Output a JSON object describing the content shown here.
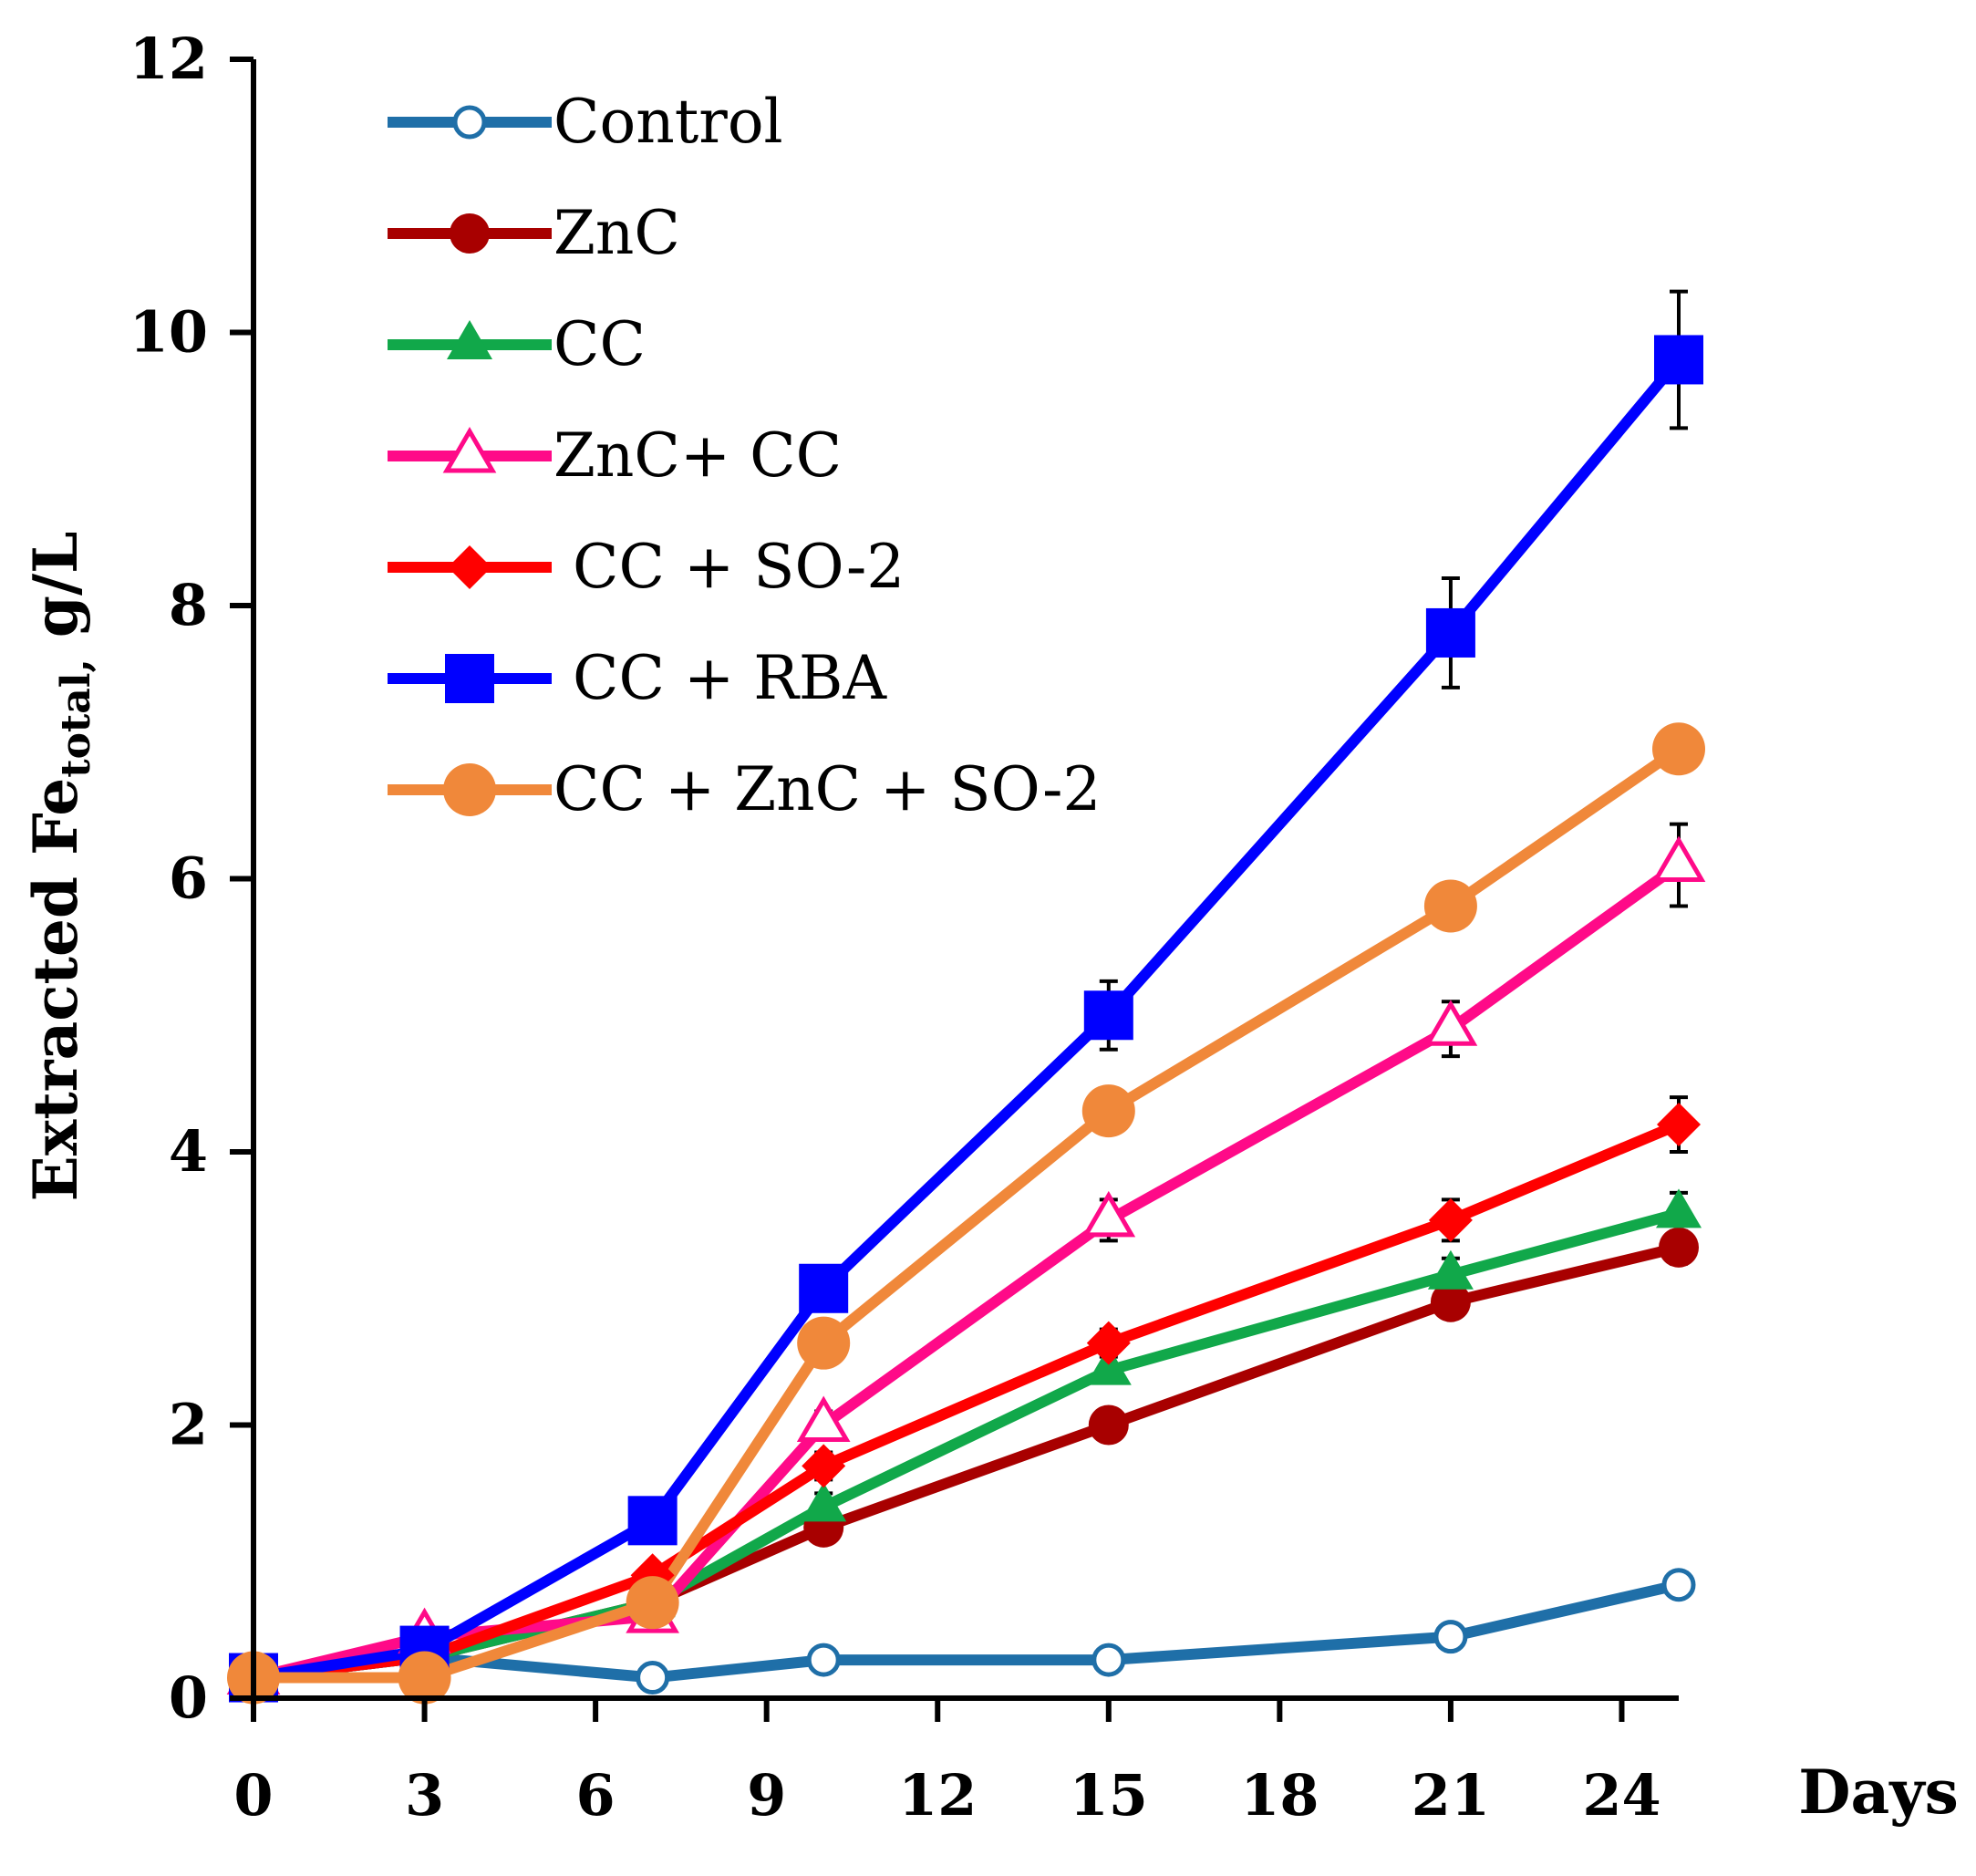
{
  "chart_data": {
    "type": "line",
    "title": "",
    "ylabel_prefix": "Extracted Fe",
    "ylabel_sub": "total,",
    "ylabel_suffix": " g/L",
    "xlabel": "Days",
    "x_ticks": [
      0,
      3,
      6,
      9,
      12,
      15,
      18,
      21,
      24
    ],
    "y_ticks": [
      0,
      2,
      4,
      6,
      8,
      10,
      12
    ],
    "xlim": [
      0,
      25
    ],
    "ylim": [
      0,
      12
    ],
    "legend_position": "top-left",
    "x": [
      0,
      3,
      7,
      10,
      15,
      21,
      25
    ],
    "series": [
      {
        "name": "Control",
        "color": "#1f6fa8",
        "marker": "open-circle",
        "values": [
          0.15,
          0.3,
          0.15,
          0.28,
          0.28,
          0.45,
          0.83
        ],
        "errors": [
          0,
          0,
          0,
          0,
          0,
          0,
          0
        ]
      },
      {
        "name": "ZnC",
        "color": "#a80000",
        "marker": "circle",
        "values": [
          0.15,
          0.3,
          0.7,
          1.25,
          2.0,
          2.9,
          3.3
        ],
        "errors": [
          0,
          0,
          0,
          0,
          0,
          0.1,
          0.12
        ]
      },
      {
        "name": "CC",
        "color": "#11a84a",
        "marker": "triangle",
        "values": [
          0.15,
          0.3,
          0.7,
          1.4,
          2.4,
          3.1,
          3.55
        ],
        "errors": [
          0,
          0,
          0,
          0.1,
          0,
          0.12,
          0.15
        ]
      },
      {
        "name": "ZnC+ CC",
        "color": "#ff0a88",
        "marker": "open-triangle",
        "values": [
          0.15,
          0.45,
          0.6,
          2.0,
          3.5,
          4.9,
          6.1
        ],
        "errors": [
          0,
          0,
          0,
          0.1,
          0.15,
          0.2,
          0.3
        ]
      },
      {
        "name": " CC + SO-2",
        "color": "#ff0000",
        "marker": "diamond",
        "values": [
          0.15,
          0.3,
          0.9,
          1.7,
          2.6,
          3.5,
          4.2
        ],
        "errors": [
          0,
          0,
          0,
          0.1,
          0.1,
          0.15,
          0.2
        ]
      },
      {
        "name": " CC + RBA",
        "color": "#0000ff",
        "marker": "square",
        "values": [
          0.15,
          0.35,
          1.3,
          3.0,
          5.0,
          7.8,
          9.8
        ],
        "errors": [
          0,
          0,
          0,
          0,
          0.25,
          0.4,
          0.5
        ]
      },
      {
        "name": "CC + ZnC + SO-2",
        "color": "#f0883a",
        "marker": "big-circle",
        "values": [
          0.15,
          0.15,
          0.7,
          2.6,
          4.3,
          5.8,
          6.95
        ],
        "errors": [
          0,
          0,
          0,
          0,
          0,
          0,
          0
        ]
      }
    ]
  }
}
